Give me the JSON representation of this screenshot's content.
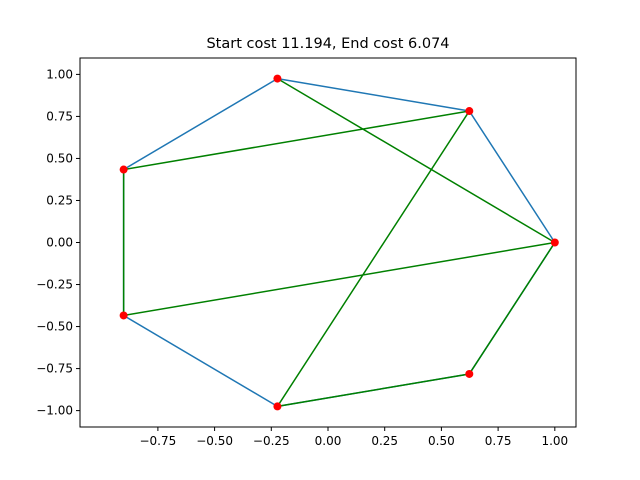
{
  "chart_data": {
    "type": "line",
    "title": "Start cost 11.194, End cost 6.074",
    "xlabel": "",
    "ylabel": "",
    "xlim": [
      -1.0,
      1.0
    ],
    "ylim": [
      -1.0,
      1.0
    ],
    "grid": false,
    "x_ticks": [
      -0.75,
      -0.5,
      -0.25,
      0.0,
      0.25,
      0.5,
      0.75,
      1.0
    ],
    "x_tick_labels": [
      "−0.75",
      "−0.50",
      "−0.25",
      "0.00",
      "0.25",
      "0.50",
      "0.75",
      "1.00"
    ],
    "y_ticks": [
      -1.0,
      -0.75,
      -0.5,
      -0.25,
      0.0,
      0.25,
      0.5,
      0.75,
      1.0
    ],
    "y_tick_labels": [
      "−1.00",
      "−0.75",
      "−0.50",
      "−0.25",
      "0.00",
      "0.25",
      "0.50",
      "0.75",
      "1.00"
    ],
    "points": [
      {
        "x": 1.0,
        "y": 0.0
      },
      {
        "x": 0.623,
        "y": 0.782
      },
      {
        "x": -0.223,
        "y": 0.975
      },
      {
        "x": -0.901,
        "y": 0.434
      },
      {
        "x": -0.901,
        "y": -0.434
      },
      {
        "x": -0.223,
        "y": -0.975
      },
      {
        "x": 0.623,
        "y": -0.782
      }
    ],
    "series": [
      {
        "color": "#1f77b4",
        "path": [
          {
            "x": 1.0,
            "y": 0.0
          },
          {
            "x": 0.623,
            "y": 0.782
          },
          {
            "x": -0.223,
            "y": 0.975
          },
          {
            "x": -0.901,
            "y": 0.434
          },
          {
            "x": -0.901,
            "y": -0.434
          },
          {
            "x": -0.223,
            "y": -0.975
          },
          {
            "x": 0.623,
            "y": -0.782
          },
          {
            "x": 1.0,
            "y": 0.0
          }
        ]
      },
      {
        "color": "#008000",
        "path": [
          {
            "x": -0.223,
            "y": 0.975
          },
          {
            "x": 1.0,
            "y": 0.0
          },
          {
            "x": -0.901,
            "y": -0.434
          },
          {
            "x": -0.901,
            "y": 0.434
          },
          {
            "x": 0.623,
            "y": 0.782
          },
          {
            "x": -0.223,
            "y": -0.975
          },
          {
            "x": 0.623,
            "y": -0.782
          },
          {
            "x": 1.0,
            "y": 0.0
          }
        ]
      }
    ],
    "point_color": "#ff0000"
  }
}
